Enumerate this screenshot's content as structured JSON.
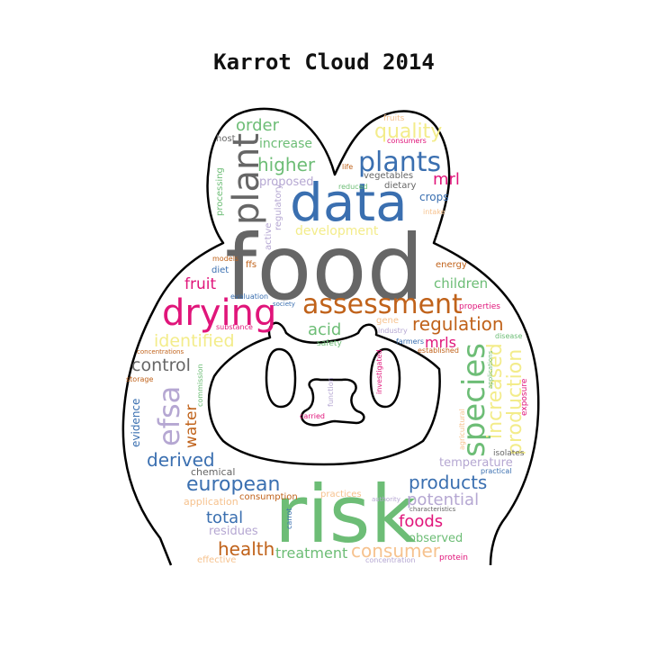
{
  "title": "Karrot Cloud 2014",
  "palette": {
    "gray": "#666666",
    "blue": "#3a6fb0",
    "magenta": "#e0157a",
    "orange": "#c0621a",
    "green": "#6dbd76",
    "yellow": "#f3ec8a",
    "lavender": "#b5a7d2",
    "peach": "#f6c28e",
    "outline": "#000000"
  },
  "words": [
    {
      "text": "food",
      "color": "gray"
    },
    {
      "text": "risk",
      "color": "green"
    },
    {
      "text": "data",
      "color": "blue"
    },
    {
      "text": "drying",
      "color": "magenta"
    },
    {
      "text": "assessment",
      "color": "orange"
    },
    {
      "text": "species",
      "color": "green"
    },
    {
      "text": "plant",
      "color": "gray"
    },
    {
      "text": "plants",
      "color": "blue"
    },
    {
      "text": "efsa",
      "color": "lavender"
    },
    {
      "text": "increased",
      "color": "yellow"
    },
    {
      "text": "production",
      "color": "yellow"
    },
    {
      "text": "higher",
      "color": "green"
    },
    {
      "text": "quality",
      "color": "yellow"
    },
    {
      "text": "european",
      "color": "blue"
    },
    {
      "text": "regulation",
      "color": "orange"
    },
    {
      "text": "identified",
      "color": "yellow"
    },
    {
      "text": "control",
      "color": "gray"
    },
    {
      "text": "derived",
      "color": "blue"
    },
    {
      "text": "products",
      "color": "blue"
    },
    {
      "text": "consumer",
      "color": "peach"
    },
    {
      "text": "health",
      "color": "orange"
    },
    {
      "text": "foods",
      "color": "magenta"
    },
    {
      "text": "potential",
      "color": "lavender"
    },
    {
      "text": "treatment",
      "color": "green"
    },
    {
      "text": "total",
      "color": "blue"
    },
    {
      "text": "order",
      "color": "green"
    },
    {
      "text": "increase",
      "color": "green"
    },
    {
      "text": "proposed",
      "color": "lavender"
    },
    {
      "text": "mrl",
      "color": "magenta"
    },
    {
      "text": "acid",
      "color": "green"
    },
    {
      "text": "children",
      "color": "green"
    },
    {
      "text": "mrls",
      "color": "magenta"
    },
    {
      "text": "fruit",
      "color": "magenta"
    },
    {
      "text": "water",
      "color": "orange"
    },
    {
      "text": "development",
      "color": "yellow"
    },
    {
      "text": "vegetables",
      "color": "gray"
    },
    {
      "text": "crops",
      "color": "blue"
    },
    {
      "text": "dietary",
      "color": "gray"
    },
    {
      "text": "temperature",
      "color": "lavender"
    },
    {
      "text": "observed",
      "color": "green"
    },
    {
      "text": "residues",
      "color": "lavender"
    },
    {
      "text": "evidence",
      "color": "blue"
    },
    {
      "text": "chemical",
      "color": "gray"
    },
    {
      "text": "application",
      "color": "peach"
    },
    {
      "text": "consumption",
      "color": "orange"
    },
    {
      "text": "practices",
      "color": "peach"
    },
    {
      "text": "processing",
      "color": "green"
    },
    {
      "text": "regulatory",
      "color": "lavender"
    },
    {
      "text": "active",
      "color": "lavender"
    },
    {
      "text": "host",
      "color": "gray"
    },
    {
      "text": "fruits",
      "color": "peach"
    },
    {
      "text": "consumers",
      "color": "magenta"
    },
    {
      "text": "life",
      "color": "orange"
    },
    {
      "text": "reduced",
      "color": "green"
    },
    {
      "text": "intake",
      "color": "peach"
    },
    {
      "text": "energy",
      "color": "orange"
    },
    {
      "text": "properties",
      "color": "magenta"
    },
    {
      "text": "disease",
      "color": "green"
    },
    {
      "text": "gene",
      "color": "peach"
    },
    {
      "text": "industry",
      "color": "lavender"
    },
    {
      "text": "farmers",
      "color": "blue"
    },
    {
      "text": "established",
      "color": "orange"
    },
    {
      "text": "safety",
      "color": "green"
    },
    {
      "text": "substance",
      "color": "magenta"
    },
    {
      "text": "society",
      "color": "blue"
    },
    {
      "text": "evaluation",
      "color": "blue"
    },
    {
      "text": "diet",
      "color": "blue"
    },
    {
      "text": "ffs",
      "color": "orange"
    },
    {
      "text": "models",
      "color": "orange"
    },
    {
      "text": "concentrations",
      "color": "orange"
    },
    {
      "text": "storage",
      "color": "orange"
    },
    {
      "text": "commission",
      "color": "green"
    },
    {
      "text": "investigated",
      "color": "magenta"
    },
    {
      "text": "carried",
      "color": "magenta"
    },
    {
      "text": "function",
      "color": "lavender"
    },
    {
      "text": "isolates",
      "color": "gray"
    },
    {
      "text": "practical",
      "color": "blue"
    },
    {
      "text": "exposure",
      "color": "magenta"
    },
    {
      "text": "applications",
      "color": "green"
    },
    {
      "text": "agricultural",
      "color": "peach"
    },
    {
      "text": "authority",
      "color": "lavender"
    },
    {
      "text": "characteristics",
      "color": "gray"
    },
    {
      "text": "carrot",
      "color": "blue"
    },
    {
      "text": "effective",
      "color": "peach"
    },
    {
      "text": "concentration",
      "color": "lavender"
    },
    {
      "text": "protein",
      "color": "magenta"
    }
  ]
}
